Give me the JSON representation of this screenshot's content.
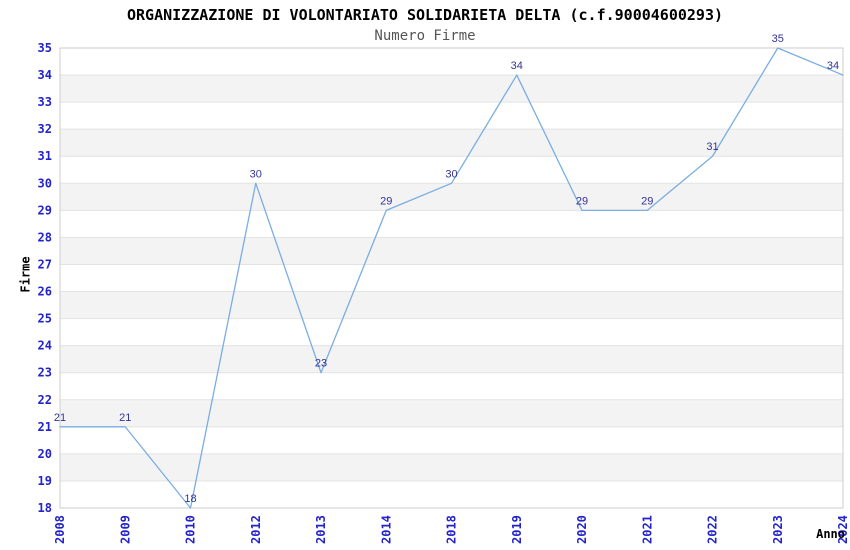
{
  "chart_data": {
    "type": "line",
    "title": "ORGANIZZAZIONE DI VOLONTARIATO SOLIDARIETA DELTA (c.f.90004600293)",
    "subtitle": "Numero Firme",
    "xlabel": "Anno",
    "ylabel": "Firme",
    "categories": [
      "2008",
      "2009",
      "2010",
      "2012",
      "2013",
      "2014",
      "2018",
      "2019",
      "2020",
      "2021",
      "2022",
      "2023",
      "2024"
    ],
    "series": [
      {
        "name": "Numero Firme",
        "values": [
          21,
          21,
          18,
          30,
          23,
          29,
          30,
          34,
          29,
          29,
          31,
          35,
          34
        ]
      }
    ],
    "point_labels_visible": true,
    "ylim": [
      18,
      35
    ],
    "ytick_step": 1,
    "grid": "alternating-horizontal-bands",
    "legend": "none",
    "colors": {
      "line": "#7aade2",
      "tick_labels": "#2323cc",
      "point_labels": "#333399",
      "band_gray": "#f3f3f3",
      "band_white": "#ffffff",
      "grid_line": "#e3e3e3",
      "plot_border": "#cccccc",
      "title": "#000000",
      "subtitle": "#555555",
      "axis_titles": "#000000"
    }
  }
}
